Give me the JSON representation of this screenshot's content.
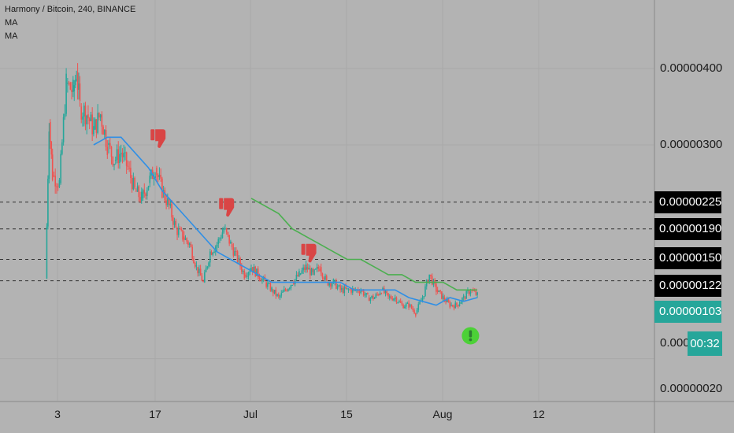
{
  "legend": {
    "symbol_line": "Harmony / Bitcoin, 240, BINANCE",
    "ma1": "MA",
    "ma2": "MA"
  },
  "colors": {
    "background": "#b3b3b3",
    "up_candle": "#26a69a",
    "down_candle": "#ef5350",
    "ma_fast": "#2f8fe6",
    "ma_slow": "#4caf50",
    "signal_icon": "#d94545",
    "alert_icon": "#4cd137"
  },
  "chart_data": {
    "type": "candlestick",
    "title": "Harmony / Bitcoin, 240, BINANCE",
    "x_ticks": [
      "3",
      "17",
      "Jul",
      "15",
      "Aug",
      "12"
    ],
    "y_ticks": [
      "0.00000400",
      "0.00000300",
      "0.00000020"
    ],
    "y_tick_partial": "0.000",
    "ylim": [
      -2e-07,
      4.8e-06
    ],
    "horizontal_levels": [
      {
        "label": "0.00000225",
        "value": 2.25e-06
      },
      {
        "label": "0.00000190",
        "value": 1.9e-06
      },
      {
        "label": "0.00000150",
        "value": 1.5e-06
      },
      {
        "label": "0.00000122",
        "value": 1.22e-06
      }
    ],
    "last_price": {
      "label": "0.00000103",
      "value": 1.03e-06
    },
    "countdown": "00:32",
    "close_series": {
      "x_days": [
        0,
        0.5,
        1,
        2,
        3,
        4,
        4.5,
        5,
        6,
        7,
        8,
        9,
        10,
        11,
        12,
        13,
        14,
        15,
        16,
        17,
        18,
        19,
        20,
        21,
        22,
        23,
        24,
        25,
        26,
        27,
        28,
        29,
        30,
        31,
        32,
        33,
        34,
        35,
        36,
        37,
        38,
        39,
        40,
        41,
        42,
        43,
        44,
        45,
        46,
        47,
        48,
        49,
        50,
        51,
        52,
        53,
        54,
        55,
        56,
        57,
        58,
        59,
        60,
        61,
        62,
        63
      ],
      "values": [
        1.25e-06,
        3.3e-06,
        2.6e-06,
        2.5e-06,
        3.8e-06,
        3.7e-06,
        3.95e-06,
        3.5e-06,
        3.4e-06,
        3.2e-06,
        3.4e-06,
        3e-06,
        2.8e-06,
        2.9e-06,
        2.7e-06,
        2.4e-06,
        2.3e-06,
        2.5e-06,
        2.7e-06,
        2.4e-06,
        2.2e-06,
        1.9e-06,
        1.8e-06,
        1.7e-06,
        1.4e-06,
        1.2e-06,
        1.6e-06,
        1.7e-06,
        1.9e-06,
        1.7e-06,
        1.5e-06,
        1.3e-06,
        1.4e-06,
        1.3e-06,
        1.2e-06,
        1.1e-06,
        1e-06,
        1.1e-06,
        1.2e-06,
        1.3e-06,
        1.4e-06,
        1.3e-06,
        1.4e-06,
        1.2e-06,
        1.2e-06,
        1.1e-06,
        1.1e-06,
        1.1e-06,
        1.1e-06,
        1e-06,
        1e-06,
        1.1e-06,
        1e-06,
        1e-06,
        9e-07,
        9e-07,
        8e-07,
        1e-06,
        1.3e-06,
        1.1e-06,
        1e-06,
        9e-07,
        9e-07,
        1e-06,
        1.1e-06,
        1.03e-06
      ]
    },
    "series": [
      {
        "x_days": [
          7,
          9,
          11,
          13,
          15,
          17,
          19,
          21,
          23,
          25,
          27,
          29,
          31,
          33,
          35,
          37,
          39,
          41,
          43,
          45,
          47,
          49,
          51,
          53,
          55,
          57,
          59,
          61,
          63
        ],
        "values": [
          3e-06,
          3.1e-06,
          3.1e-06,
          2.9e-06,
          2.7e-06,
          2.4e-06,
          2.2e-06,
          2e-06,
          1.8e-06,
          1.6e-06,
          1.5e-06,
          1.4e-06,
          1.3e-06,
          1.2e-06,
          1.2e-06,
          1.2e-06,
          1.2e-06,
          1.2e-06,
          1.2e-06,
          1.1e-06,
          1.1e-06,
          1.1e-06,
          1.1e-06,
          1e-06,
          9.5e-07,
          9e-07,
          1e-06,
          9.5e-07,
          1e-06
        ]
      },
      {
        "x_days": [
          30,
          32,
          34,
          36,
          38,
          40,
          42,
          44,
          46,
          48,
          50,
          52,
          54,
          56,
          58,
          60,
          62,
          63
        ],
        "values": [
          2.3e-06,
          2.2e-06,
          2.1e-06,
          1.9e-06,
          1.8e-06,
          1.7e-06,
          1.6e-06,
          1.5e-06,
          1.5e-06,
          1.4e-06,
          1.3e-06,
          1.3e-06,
          1.2e-06,
          1.2e-06,
          1.2e-06,
          1.1e-06,
          1.1e-06,
          1.1e-06
        ]
      }
    ],
    "markers": [
      {
        "type": "thumbs-down",
        "x_days": 16,
        "value": 3.1e-06
      },
      {
        "type": "thumbs-down",
        "x_days": 26,
        "value": 2.2e-06
      },
      {
        "type": "thumbs-down",
        "x_days": 38,
        "value": 1.6e-06
      },
      {
        "type": "exclamation",
        "x_days": 62,
        "value": 5e-07
      }
    ]
  }
}
